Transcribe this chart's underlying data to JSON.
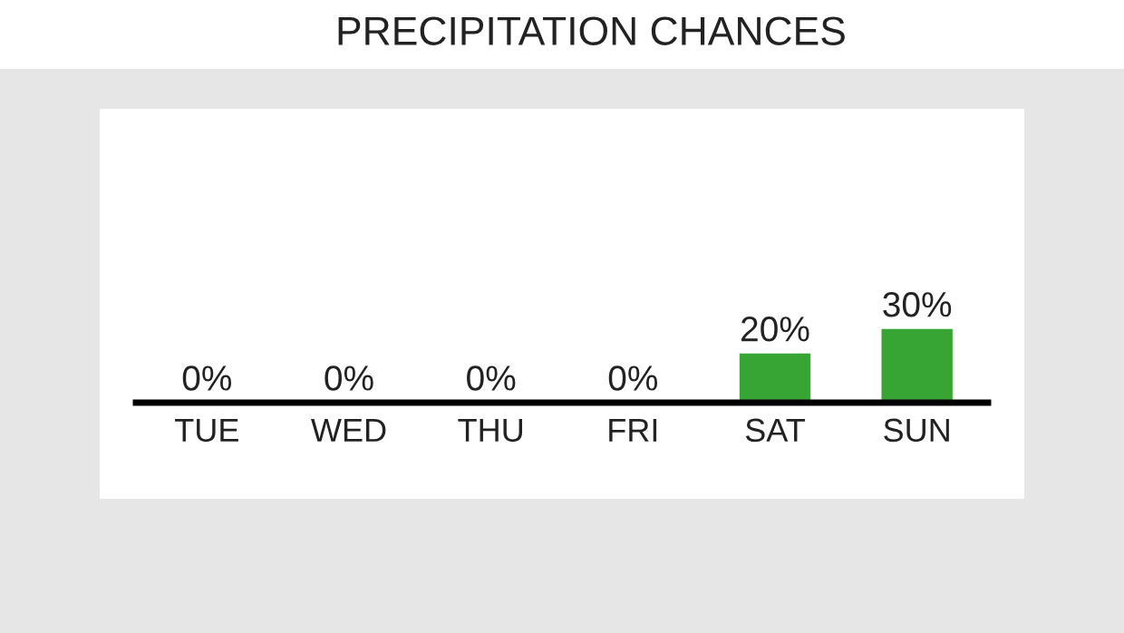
{
  "chart_data": {
    "type": "bar",
    "title": "PRECIPITATION CHANCES",
    "categories": [
      "TUE",
      "WED",
      "THU",
      "FRI",
      "SAT",
      "SUN"
    ],
    "values": [
      0,
      0,
      0,
      0,
      20,
      30
    ],
    "color": "#36a533",
    "value_labels": [
      "0%",
      "0%",
      "0%",
      "0%",
      "20%",
      "30%"
    ],
    "grid": false,
    "legend": false
  }
}
